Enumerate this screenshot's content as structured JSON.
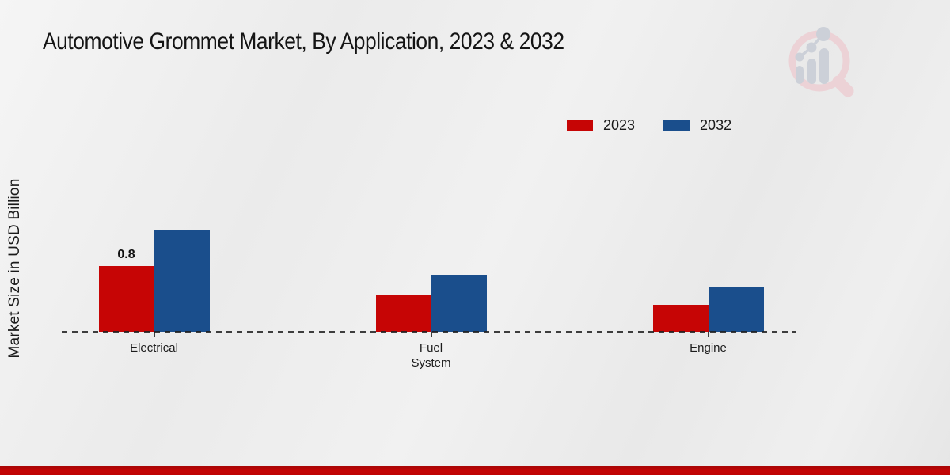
{
  "title": "Automotive Grommet Market, By Application, 2023 & 2032",
  "ylabel": "Market Size in USD Billion",
  "colors": {
    "series_2023": "#c60505",
    "series_2032": "#1a4e8c",
    "baseline": "#1e1e1e",
    "footer_strip": "#c40404",
    "background": "#ededed"
  },
  "legend": {
    "position": "top-right",
    "items": [
      {
        "label": "2023",
        "color": "#c60505"
      },
      {
        "label": "2032",
        "color": "#1a4e8c"
      }
    ]
  },
  "watermark": {
    "name": "market-research-future-logo",
    "ring_color": "#ecd2d6",
    "bars_color": "#ccd0d8"
  },
  "chart_data": {
    "type": "bar",
    "title": "Automotive Grommet Market, By Application, 2023 & 2032",
    "xlabel": "",
    "ylabel": "Market Size in USD Billion",
    "categories": [
      "Electrical",
      "Fuel System",
      "Engine"
    ],
    "series": [
      {
        "name": "2023",
        "color": "#c60505",
        "values": [
          0.8,
          0.45,
          0.33
        ],
        "labels": [
          "0.8",
          "",
          ""
        ]
      },
      {
        "name": "2032",
        "color": "#1a4e8c",
        "values": [
          1.25,
          0.7,
          0.55
        ],
        "labels": [
          "",
          "",
          ""
        ]
      }
    ],
    "ylim": [
      0,
      1.45
    ],
    "grid": false,
    "y_axis_ticks_visible": false,
    "legend_position": "top-right",
    "baseline_style": "dashed"
  }
}
